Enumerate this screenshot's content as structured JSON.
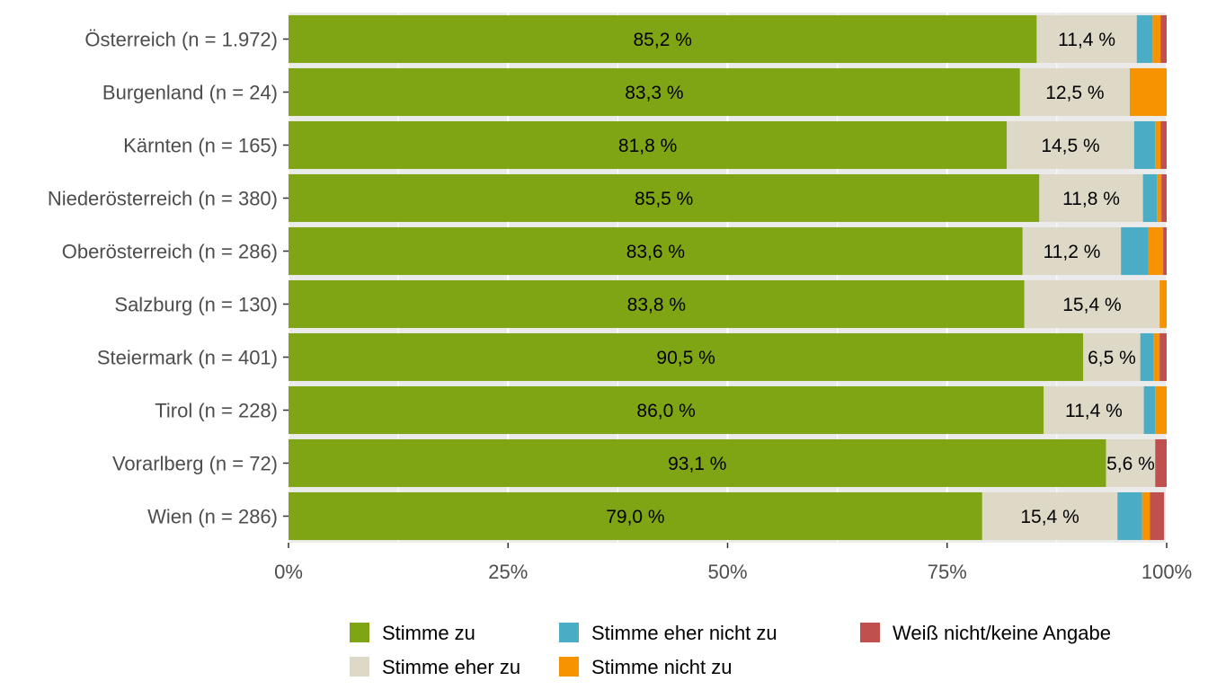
{
  "chart_data": {
    "type": "bar",
    "orientation": "horizontal",
    "stacked": true,
    "percent": true,
    "categories": [
      "Österreich (n = 1.972)",
      "Burgenland (n = 24)",
      "Kärnten (n = 165)",
      "Niederösterreich (n = 380)",
      "Oberösterreich (n = 286)",
      "Salzburg (n = 130)",
      "Steiermark (n = 401)",
      "Tirol (n = 228)",
      "Vorarlberg (n = 72)",
      "Wien (n = 286)"
    ],
    "series": [
      {
        "name": "Stimme zu",
        "color": "#7fa514",
        "values": [
          85.2,
          83.3,
          81.8,
          85.5,
          83.6,
          83.8,
          90.5,
          86.0,
          93.1,
          79.0
        ],
        "labels": [
          "85,2 %",
          "83,3 %",
          "81,8 %",
          "85,5 %",
          "83,6 %",
          "83,8 %",
          "90,5 %",
          "86,0 %",
          "93,1 %",
          "79,0 %"
        ]
      },
      {
        "name": "Stimme eher zu",
        "color": "#ddd9c6",
        "values": [
          11.4,
          12.5,
          14.5,
          11.8,
          11.2,
          15.4,
          6.5,
          11.4,
          5.6,
          15.4
        ],
        "labels": [
          "11,4 %",
          "12,5 %",
          "14,5 %",
          "11,8 %",
          "11,2 %",
          "15,4 %",
          "6,5 %",
          "11,4 %",
          "5,6 %",
          "15,4 %"
        ]
      },
      {
        "name": "Stimme eher nicht zu",
        "color": "#4bacc6",
        "values": [
          1.8,
          0.0,
          2.4,
          1.6,
          3.1,
          0.0,
          1.5,
          1.3,
          0.0,
          2.8
        ]
      },
      {
        "name": "Stimme nicht zu",
        "color": "#f79300",
        "values": [
          0.9,
          4.2,
          0.6,
          0.5,
          1.7,
          0.8,
          0.7,
          1.3,
          0.0,
          0.9
        ]
      },
      {
        "name": "Weiß nicht/keine Angabe",
        "color": "#c0504d",
        "values": [
          0.7,
          0.0,
          0.7,
          0.6,
          0.4,
          0.0,
          0.8,
          0.0,
          1.3,
          1.6
        ]
      }
    ],
    "xlim": [
      0,
      100
    ],
    "x_ticks": [
      0,
      25,
      50,
      75,
      100
    ],
    "x_tick_labels": [
      "0%",
      "25%",
      "50%",
      "75%",
      "100%"
    ],
    "grid": true,
    "legend_position": "bottom",
    "panel_background": "#ebebeb"
  }
}
